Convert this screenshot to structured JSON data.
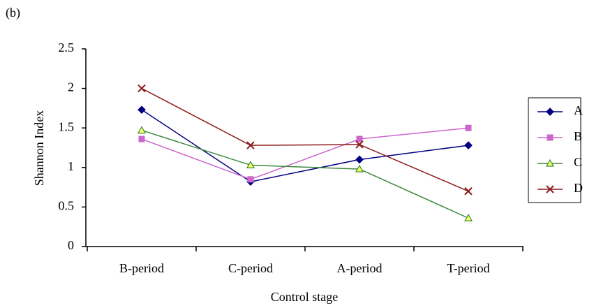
{
  "chart_data": {
    "type": "line",
    "panel_label": "(b)",
    "x_label": "Control stage",
    "y_label": "Shannon Index",
    "categories": [
      "B-period",
      "C-period",
      "A-period",
      "T-period"
    ],
    "series": [
      {
        "name": "A",
        "color": "#000080",
        "marker": "diamond",
        "marker_color": "#000080",
        "values": [
          1.73,
          0.82,
          1.1,
          1.28
        ]
      },
      {
        "name": "B",
        "color": "#cc66cc",
        "marker": "square",
        "marker_color": "#cc66cc",
        "values": [
          1.36,
          0.85,
          1.36,
          1.5
        ]
      },
      {
        "name": "C",
        "color": "#3a8a3a",
        "marker": "triangle",
        "marker_color": "#ffff66",
        "values": [
          1.47,
          1.03,
          0.98,
          0.36
        ]
      },
      {
        "name": "D",
        "color": "#8b1a1a",
        "marker": "x",
        "marker_color": "#8b1a1a",
        "values": [
          2.0,
          1.28,
          1.29,
          0.7
        ]
      }
    ],
    "ylim": [
      0,
      2.5
    ],
    "yticks": [
      0,
      0.5,
      1,
      1.5,
      2,
      2.5
    ],
    "grid": false
  }
}
